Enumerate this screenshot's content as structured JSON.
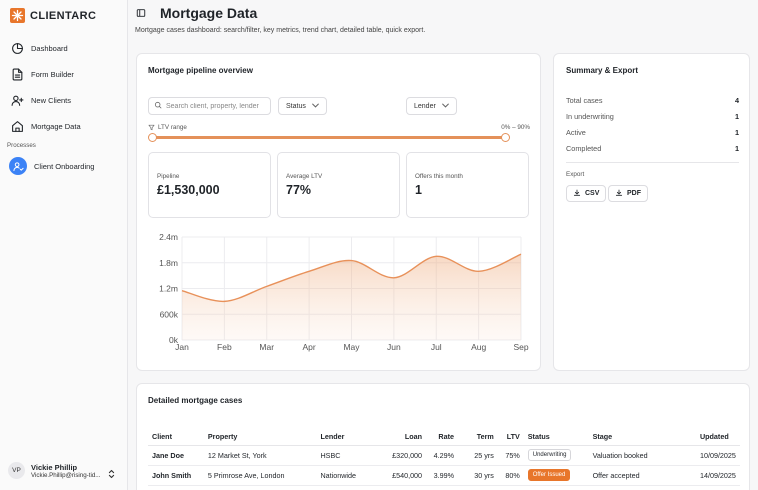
{
  "app": {
    "name": "CLIENTARC",
    "brand_color": "#e8762b",
    "accent_color": "#3b82f6"
  },
  "sidebar": {
    "items": [
      {
        "label": "Dashboard",
        "icon": "pie-chart-icon"
      },
      {
        "label": "Form Builder",
        "icon": "document-icon"
      },
      {
        "label": "New Clients",
        "icon": "user-plus-icon"
      },
      {
        "label": "Mortgage Data",
        "icon": "home-icon"
      }
    ],
    "processes_label": "Processes",
    "process_items": [
      {
        "label": "Client Onboarding",
        "icon": "user-check-icon"
      }
    ],
    "user": {
      "initials": "VP",
      "name": "Vickie Phillip",
      "email": "Vickie.Phillip@rising-tid..."
    }
  },
  "header": {
    "title": "Mortgage Data",
    "subtitle": "Mortgage cases dashboard: search/filter, key metrics, trend chart, detailed table, quick export."
  },
  "pipeline": {
    "title": "Mortgage pipeline overview",
    "search_placeholder": "Search client, property, lender",
    "status_select": "Status",
    "lender_select": "Lender",
    "ltv_label": "LTV range",
    "ltv_range": "0% – 90%",
    "ltv_min": 0,
    "ltv_max": 90,
    "metrics": [
      {
        "label": "Pipeline",
        "value": "£1,530,000"
      },
      {
        "label": "Average LTV",
        "value": "77%"
      },
      {
        "label": "Offers this month",
        "value": "1"
      }
    ]
  },
  "summary": {
    "title": "Summary & Export",
    "rows": [
      {
        "label": "Total cases",
        "value": "4"
      },
      {
        "label": "In underwriting",
        "value": "1"
      },
      {
        "label": "Active",
        "value": "1"
      },
      {
        "label": "Completed",
        "value": "1"
      }
    ],
    "export_label": "Export",
    "csv_label": "CSV",
    "pdf_label": "PDF"
  },
  "table": {
    "title": "Detailed mortgage cases",
    "columns": [
      "Client",
      "Property",
      "Lender",
      "Loan",
      "Rate",
      "Term",
      "LTV",
      "Status",
      "Stage",
      "Updated"
    ],
    "rows": [
      {
        "client": "Jane Doe",
        "property": "12 Market St, York",
        "lender": "HSBC",
        "loan": "£320,000",
        "rate": "4.29%",
        "term": "25 yrs",
        "ltv": "75%",
        "status": "Underwriting",
        "stage": "Valuation booked",
        "updated": "10/09/2025"
      },
      {
        "client": "John Smith",
        "property": "5 Primrose Ave, London",
        "lender": "Nationwide",
        "loan": "£540,000",
        "rate": "3.99%",
        "term": "30 yrs",
        "ltv": "80%",
        "status": "Offer Issued",
        "stage": "Offer accepted",
        "updated": "14/09/2025"
      }
    ]
  },
  "chart_data": {
    "type": "area",
    "categories": [
      "Jan",
      "Feb",
      "Mar",
      "Apr",
      "May",
      "Jun",
      "Jul",
      "Aug",
      "Sep"
    ],
    "values": [
      1150000,
      900000,
      1250000,
      1600000,
      1850000,
      1450000,
      1950000,
      1600000,
      2000000
    ],
    "y_ticks": [
      "0k",
      "600k",
      "1.2m",
      "1.8m",
      "2.4m"
    ],
    "y_tick_values": [
      0,
      600000,
      1200000,
      1800000,
      2400000
    ],
    "ylim": [
      0,
      2400000
    ],
    "grid": true,
    "line_color": "#e8915a"
  }
}
